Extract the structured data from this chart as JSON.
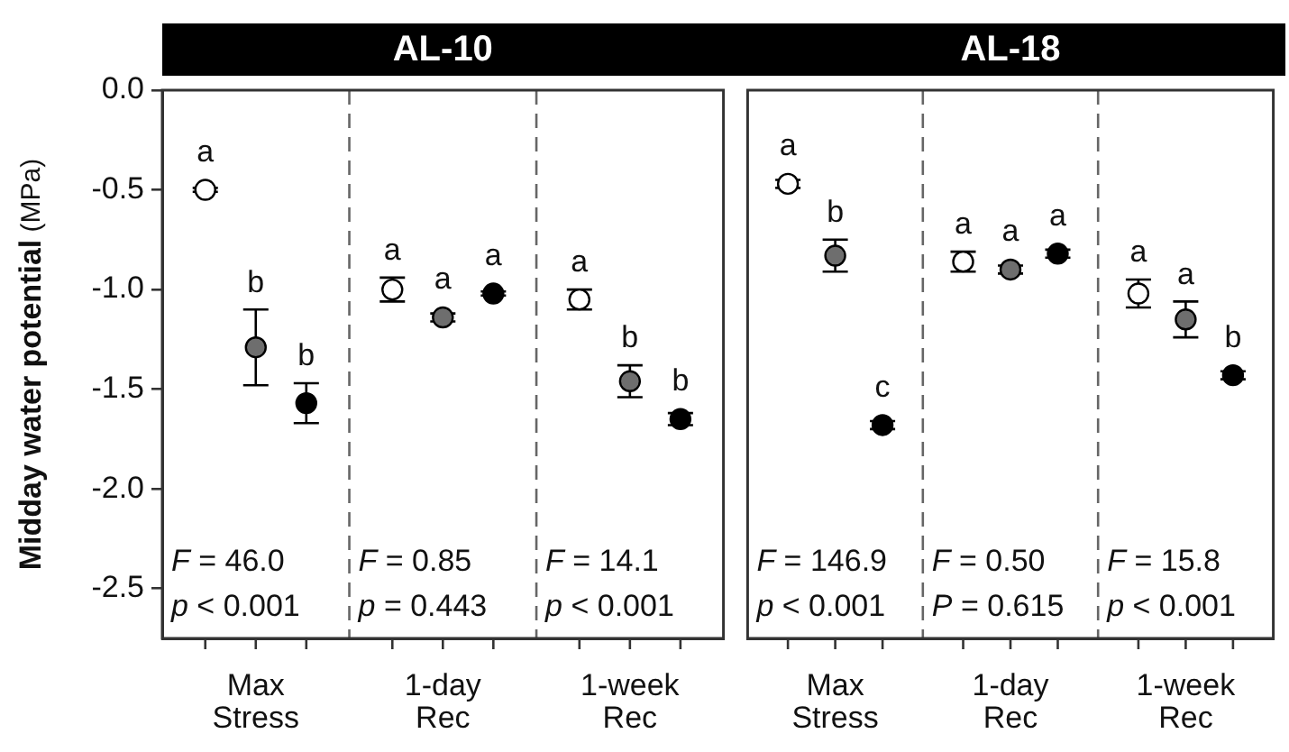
{
  "chart_data": [
    {
      "type": "scatter",
      "title": "AL-10",
      "ylabel": "Midday water potential (MPa)",
      "marker": "circle",
      "grid": "x",
      "categories": [
        "Max Stress",
        "1-day Rec",
        "1-week Rec"
      ],
      "ylim": [
        -2.75,
        0
      ],
      "yticks": [
        {
          "value": 0,
          "label": "0.0"
        },
        {
          "value": -0.5,
          "label": "-0.5"
        },
        {
          "value": -1,
          "label": "-1.0"
        },
        {
          "value": -1.5,
          "label": "-1.5"
        },
        {
          "value": -2,
          "label": "-2.0"
        },
        {
          "value": -2.5,
          "label": "-2.5"
        }
      ],
      "series": [
        {
          "color": "#ffffff",
          "values": [
            -0.5,
            -1.0,
            -1.05
          ],
          "errors": [
            0.01,
            0.06,
            0.05
          ],
          "value_labels": [
            "a",
            "a",
            "a"
          ]
        },
        {
          "color": "#6e6e6e",
          "values": [
            -1.29,
            -1.14,
            -1.46
          ],
          "errors": [
            0.19,
            0.02,
            0.08
          ],
          "value_labels": [
            "b",
            "a",
            "b"
          ]
        },
        {
          "color": "#000000",
          "values": [
            -1.57,
            -1.02,
            -1.65
          ],
          "errors": [
            0.1,
            0.01,
            0.03
          ],
          "value_labels": [
            "b",
            "a",
            "b"
          ]
        }
      ],
      "annotations": [
        "F = 46.0",
        "p < 0.001",
        "F = 0.85",
        "p = 0.443",
        "F = 14.1",
        "p < 0.001"
      ]
    },
    {
      "type": "scatter",
      "title": "AL-18",
      "marker": "circle",
      "grid": "x",
      "tick_labels": "x",
      "categories": [
        "Max Stress",
        "1-day Rec",
        "1-week Rec"
      ],
      "ylim": [
        -2.75,
        0
      ],
      "series": [
        {
          "color": "#ffffff",
          "values": [
            -0.47,
            -0.86,
            -1.02
          ],
          "errors": [
            0.02,
            0.05,
            0.07
          ],
          "value_labels": [
            "a",
            "a",
            "a"
          ]
        },
        {
          "color": "#6e6e6e",
          "values": [
            -0.83,
            -0.9,
            -1.15
          ],
          "errors": [
            0.08,
            0.02,
            0.09
          ],
          "value_labels": [
            "b",
            "a",
            "a"
          ]
        },
        {
          "color": "#000000",
          "values": [
            -1.68,
            -0.82,
            -1.43
          ],
          "errors": [
            0.02,
            0.02,
            0.02
          ],
          "value_labels": [
            "c",
            "a",
            "b"
          ]
        }
      ],
      "annotations": [
        "F = 146.9",
        "p < 0.001",
        "F = 0.50",
        "P = 0.615",
        "F = 15.8",
        "p < 0.001"
      ]
    }
  ]
}
